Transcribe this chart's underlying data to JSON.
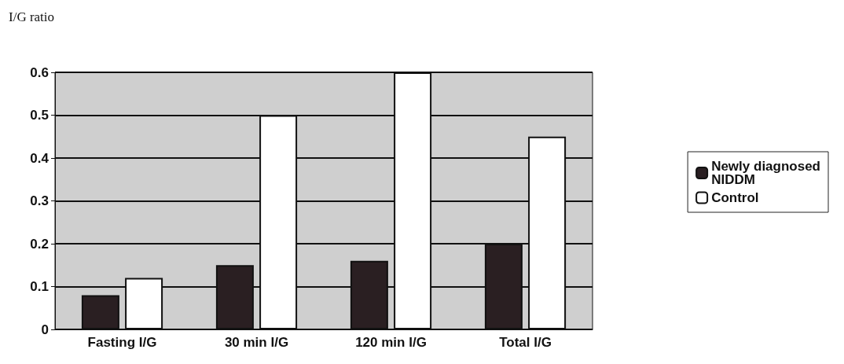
{
  "chart_data": {
    "type": "bar",
    "ylabel": "I/G ratio",
    "categories": [
      "Fasting I/G",
      "30 min I/G",
      "120 min I/G",
      "Total I/G"
    ],
    "series": [
      {
        "name": "Newly diagnosed\nNIDDM",
        "color": "#2a1f22",
        "values": [
          0.08,
          0.15,
          0.16,
          0.2
        ]
      },
      {
        "name": "Control",
        "color": "#ffffff",
        "values": [
          0.12,
          0.5,
          0.6,
          0.45
        ]
      }
    ],
    "ylim": [
      0,
      0.6
    ],
    "yticks": [
      0,
      0.1,
      0.2,
      0.3,
      0.4,
      0.5,
      0.6
    ],
    "grid": "y",
    "legend": "right"
  }
}
